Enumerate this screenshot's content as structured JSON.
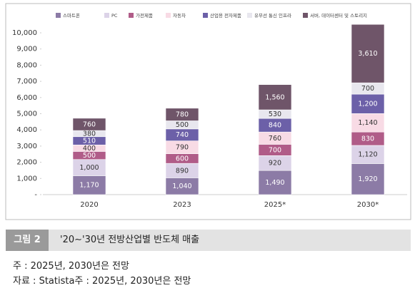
{
  "chart_data": {
    "type": "stacked_bar",
    "categories": [
      "2020",
      "2023",
      "2025*",
      "2030*"
    ],
    "series": [
      {
        "name": "스마트폰",
        "color": "#8c7ba6",
        "values": [
          1170,
          1040,
          1490,
          1920
        ],
        "value_labels": [
          "1,170",
          "1,040",
          "1,490",
          "1,920"
        ]
      },
      {
        "name": "PC",
        "color": "#dcd3e8",
        "values": [
          1000,
          890,
          920,
          1120
        ],
        "value_labels": [
          "1,000",
          "890",
          "920",
          "1,120"
        ]
      },
      {
        "name": "가전제품",
        "color": "#b05c88",
        "values": [
          500,
          600,
          700,
          830
        ],
        "value_labels": [
          "500",
          "600",
          "700",
          "830"
        ]
      },
      {
        "name": "자동차",
        "color": "#f8dbe5",
        "values": [
          400,
          790,
          760,
          1140
        ],
        "value_labels": [
          "400",
          "790",
          "760",
          "1,140"
        ]
      },
      {
        "name": "산업용 전자제품",
        "color": "#6c60a8",
        "values": [
          510,
          740,
          840,
          1200
        ],
        "value_labels": [
          "510",
          "740",
          "840",
          "1,200"
        ]
      },
      {
        "name": "유무선 통신 인프라",
        "color": "#e8e7ee",
        "values": [
          380,
          500,
          530,
          700
        ],
        "value_labels": [
          "380",
          "500",
          "530",
          "700"
        ]
      },
      {
        "name": "서버, 데이터센터 및 스토리지",
        "color": "#6f5569",
        "values": [
          760,
          780,
          1560,
          3610
        ],
        "value_labels": [
          "760",
          "780",
          "1,560",
          "3,610"
        ]
      }
    ],
    "ylim": [
      0,
      10600
    ],
    "yticks": [
      {
        "value": 0,
        "label": "-"
      },
      {
        "value": 1000,
        "label": "1,000"
      },
      {
        "value": 2000,
        "label": "2,000"
      },
      {
        "value": 3000,
        "label": "3,000"
      },
      {
        "value": 4000,
        "label": "4,000"
      },
      {
        "value": 5000,
        "label": "5,000"
      },
      {
        "value": 6000,
        "label": "6,000"
      },
      {
        "value": 7000,
        "label": "7,000"
      },
      {
        "value": 8000,
        "label": "8,000"
      },
      {
        "value": 9000,
        "label": "9,000"
      },
      {
        "value": 10000,
        "label": "10,000"
      }
    ],
    "legend": "top"
  },
  "figure": {
    "label": "그림 2",
    "caption": "'20∼'30년 전방산업별 반도체 매출"
  },
  "notes": [
    "주 : 2025년, 2030년은 전망",
    "자료 : Statista주 : 2025년, 2030년은 전망"
  ]
}
